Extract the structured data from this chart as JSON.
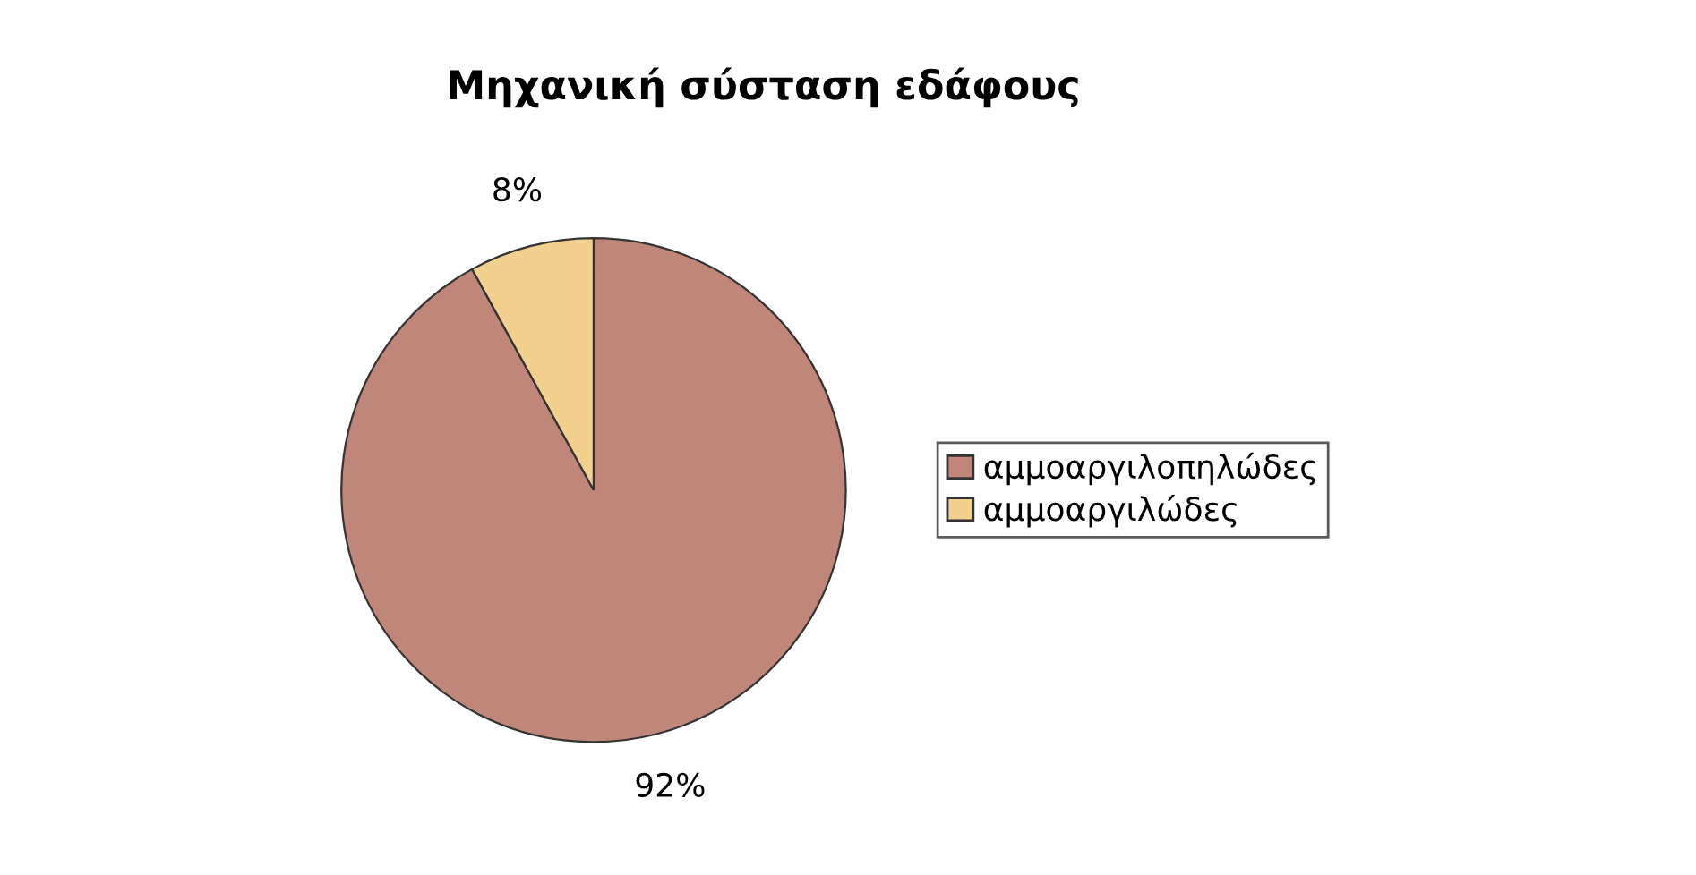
{
  "chart_data": {
    "type": "pie",
    "title": "Μηχανική σύσταση εδάφους",
    "categories": [
      "αμμοαργιλοπηλώδες",
      "αμμοαργιλώδες"
    ],
    "values": [
      92,
      8
    ],
    "colors": [
      "#c0867a",
      "#f2d08e"
    ],
    "value_labels": [
      "92%",
      "8%"
    ],
    "legend": "right"
  }
}
